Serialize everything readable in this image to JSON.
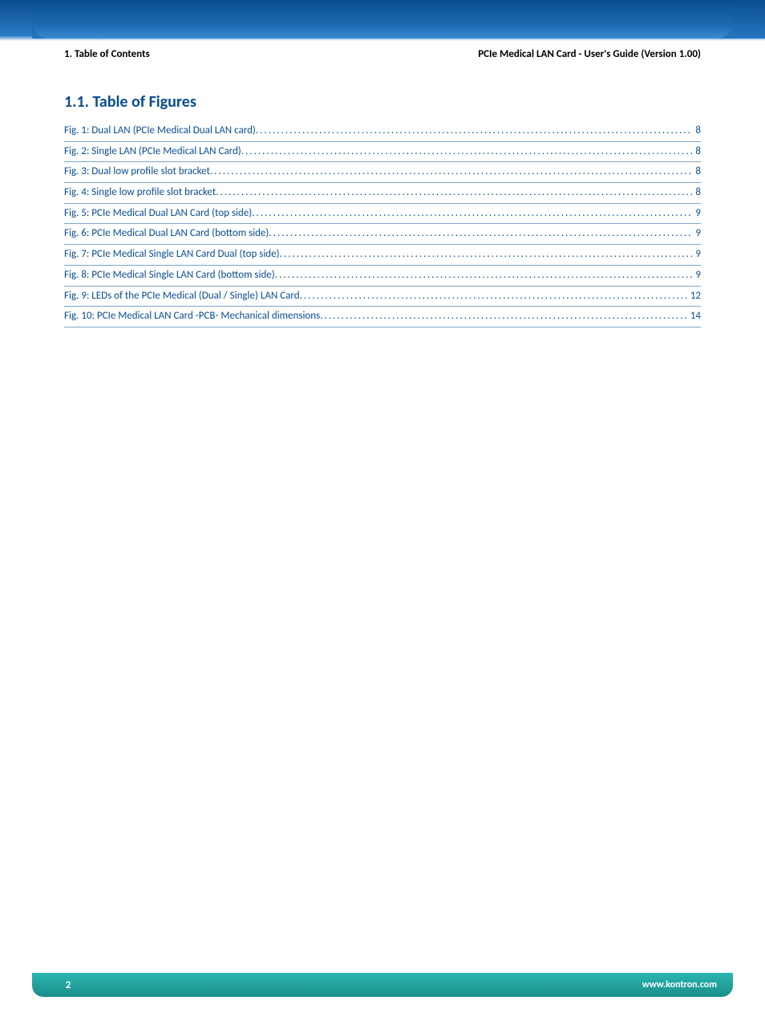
{
  "header": {
    "left": "1. Table of Contents",
    "right": "PCIe Medical LAN Card - User's Guide (Version 1.00)"
  },
  "section": {
    "heading": "1.1. Table of Figures"
  },
  "figures": [
    {
      "label": "Fig. 1: Dual LAN (PCIe Medical Dual LAN card)",
      "page": "8"
    },
    {
      "label": "Fig. 2: Single LAN (PCIe Medical LAN Card)",
      "page": "8"
    },
    {
      "label": "Fig. 3: Dual low profile slot bracket",
      "page": "8"
    },
    {
      "label": "Fig. 4: Single low profile slot bracket",
      "page": "8"
    },
    {
      "label": "Fig. 5: PCIe Medical Dual LAN Card (top side)",
      "page": "9"
    },
    {
      "label": "Fig. 6: PCIe Medical Dual LAN Card (bottom side)",
      "page": "9"
    },
    {
      "label": "Fig. 7: PCIe Medical Single  LAN Card Dual (top side)",
      "page": "9"
    },
    {
      "label": "Fig. 8: PCIe Medical Single LAN Card (bottom side)",
      "page": "9"
    },
    {
      "label": "Fig. 9: LEDs of the PCIe Medical (Dual / Single) LAN Card",
      "page": "12"
    },
    {
      "label": "Fig. 10: PCIe Medical LAN Card -PCB- Mechanical dimensions",
      "page": "14"
    }
  ],
  "footer": {
    "page": "2",
    "url": "www.kontron.com"
  },
  "colors": {
    "brand_blue": "#0a4d8f",
    "link_underline": "#7da6c9",
    "teal_start": "#2bb6b0",
    "teal_end": "#1a8e8a"
  }
}
